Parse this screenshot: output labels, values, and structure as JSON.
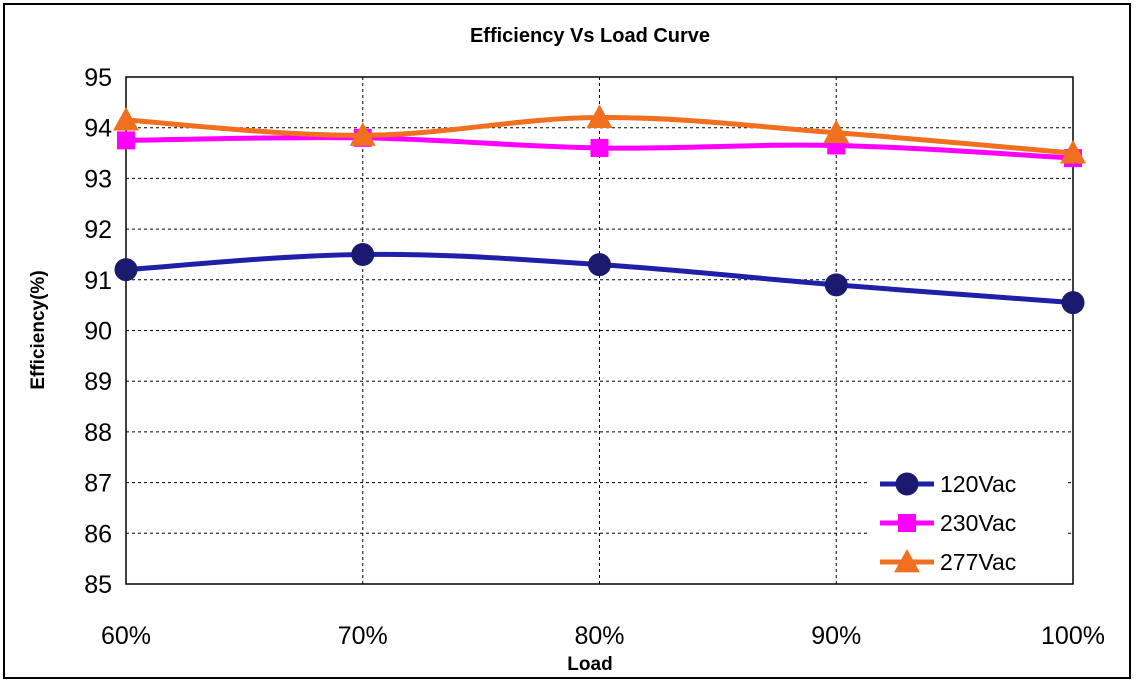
{
  "chart_data": {
    "type": "line",
    "title": "Efficiency Vs Load Curve",
    "xlabel": "Load",
    "ylabel": "Efficiency(%)",
    "categories": [
      "60%",
      "70%",
      "80%",
      "90%",
      "100%"
    ],
    "ylim": [
      85,
      95
    ],
    "yticks": [
      85,
      86,
      87,
      88,
      89,
      90,
      91,
      92,
      93,
      94,
      95
    ],
    "grid": true,
    "legend_position": "bottom-right",
    "series": [
      {
        "name": "120Vac",
        "values": [
          91.2,
          91.5,
          91.3,
          90.9,
          90.55
        ],
        "color": "#1f1fa8",
        "marker": "circle"
      },
      {
        "name": "230Vac",
        "values": [
          93.75,
          93.8,
          93.6,
          93.65,
          93.4
        ],
        "color": "#ff00ff",
        "marker": "square"
      },
      {
        "name": "277Vac",
        "values": [
          94.15,
          93.85,
          94.2,
          93.9,
          93.5
        ],
        "color": "#f07020",
        "marker": "triangle"
      }
    ]
  }
}
